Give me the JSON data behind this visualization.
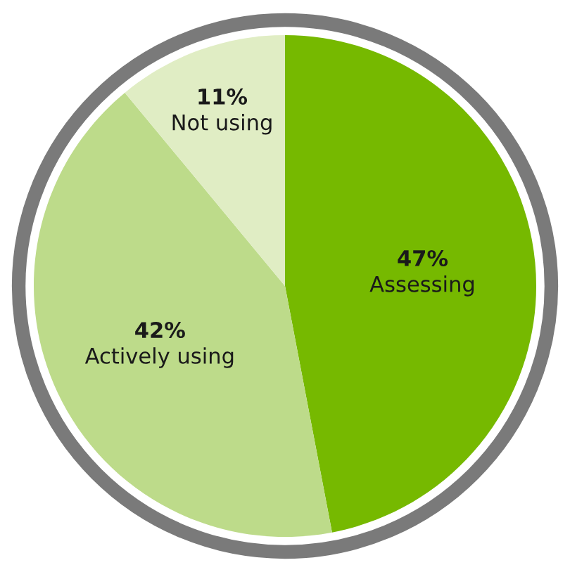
{
  "chart_data": {
    "type": "pie",
    "categories": [
      "Assessing",
      "Actively using",
      "Not using"
    ],
    "values": [
      47,
      42,
      11
    ],
    "colors": [
      "#76b900",
      "#bddb8a",
      "#e0edc4"
    ],
    "value_labels": [
      "47%",
      "42%",
      "11%"
    ]
  }
}
